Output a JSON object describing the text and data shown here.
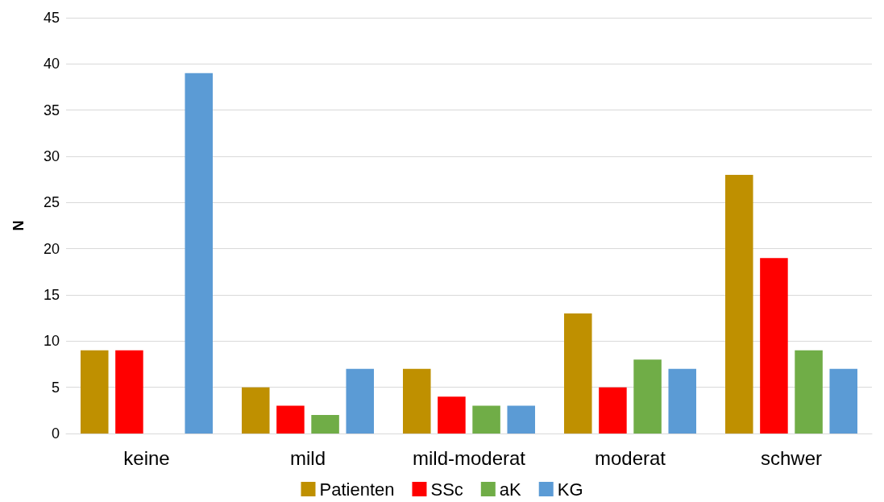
{
  "chart_data": {
    "type": "bar",
    "ylabel": "N",
    "categories": [
      "keine",
      "mild",
      "mild-moderat",
      "moderat",
      "schwer"
    ],
    "series": [
      {
        "name": "Patienten",
        "color": "#bf9000",
        "values": [
          9,
          5,
          7,
          13,
          28
        ]
      },
      {
        "name": "SSc",
        "color": "#ff0000",
        "values": [
          9,
          3,
          4,
          5,
          19
        ]
      },
      {
        "name": "aK",
        "color": "#70ad47",
        "values": [
          0,
          2,
          3,
          8,
          9
        ]
      },
      {
        "name": "KG",
        "color": "#5b9bd5",
        "values": [
          39,
          7,
          3,
          7,
          7
        ]
      }
    ],
    "ylim": [
      0,
      45
    ],
    "yticks": [
      0,
      5,
      10,
      15,
      20,
      25,
      30,
      35,
      40,
      45
    ],
    "grid": "y",
    "legend": "bottom"
  }
}
